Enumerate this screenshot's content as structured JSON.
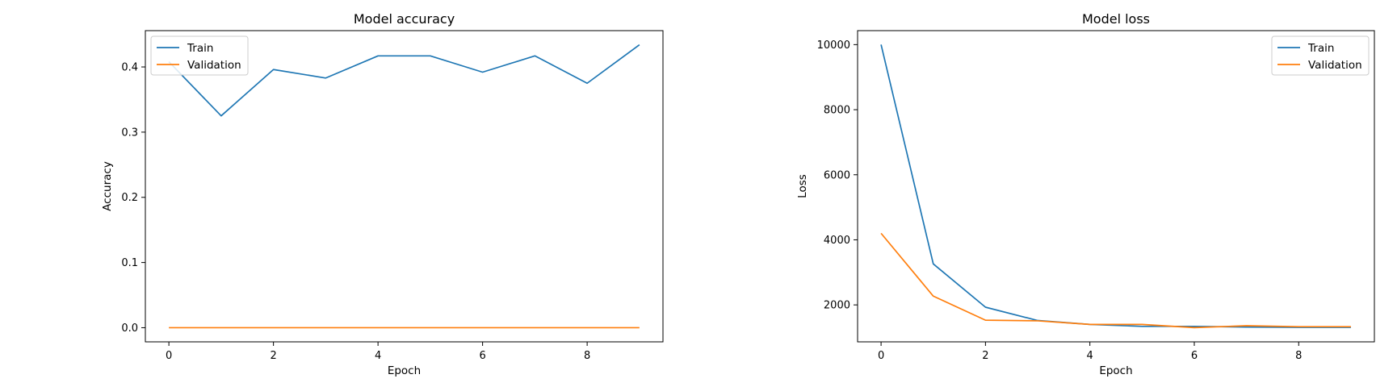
{
  "chart_data": [
    {
      "type": "line",
      "title": "Model accuracy",
      "xlabel": "Epoch",
      "ylabel": "Accuracy",
      "xlim": [
        -0.45,
        9.45
      ],
      "ylim": [
        -0.0217,
        0.4557
      ],
      "xticks": [
        0,
        2,
        4,
        6,
        8
      ],
      "yticks": [
        0.0,
        0.1,
        0.2,
        0.3,
        0.4
      ],
      "ytick_labels": [
        "0.0",
        "0.1",
        "0.2",
        "0.3",
        "0.4"
      ],
      "grid": false,
      "legend_position": "upper left",
      "x": [
        0,
        1,
        2,
        3,
        4,
        5,
        6,
        7,
        8,
        9
      ],
      "series": [
        {
          "name": "Train",
          "color": "#1f77b4",
          "values": [
            0.408,
            0.325,
            0.396,
            0.383,
            0.417,
            0.417,
            0.392,
            0.417,
            0.375,
            0.434
          ]
        },
        {
          "name": "Validation",
          "color": "#ff7f0e",
          "values": [
            0.0,
            0.0,
            0.0,
            0.0,
            0.0,
            0.0,
            0.0,
            0.0,
            0.0,
            0.0
          ]
        }
      ]
    },
    {
      "type": "line",
      "title": "Model loss",
      "xlabel": "Epoch",
      "ylabel": "Loss",
      "xlim": [
        -0.45,
        9.45
      ],
      "ylim": [
        864,
        10430
      ],
      "xticks": [
        0,
        2,
        4,
        6,
        8
      ],
      "yticks": [
        2000,
        4000,
        6000,
        8000,
        10000
      ],
      "ytick_labels": [
        "2000",
        "4000",
        "6000",
        "8000",
        "10000"
      ],
      "grid": false,
      "legend_position": "upper right",
      "x": [
        0,
        1,
        2,
        3,
        4,
        5,
        6,
        7,
        8,
        9
      ],
      "series": [
        {
          "name": "Train",
          "color": "#1f77b4",
          "values": [
            10000,
            3260,
            1930,
            1520,
            1400,
            1340,
            1340,
            1320,
            1310,
            1310
          ]
        },
        {
          "name": "Validation",
          "color": "#ff7f0e",
          "values": [
            4200,
            2270,
            1530,
            1510,
            1400,
            1400,
            1300,
            1360,
            1330,
            1330
          ]
        }
      ]
    }
  ]
}
